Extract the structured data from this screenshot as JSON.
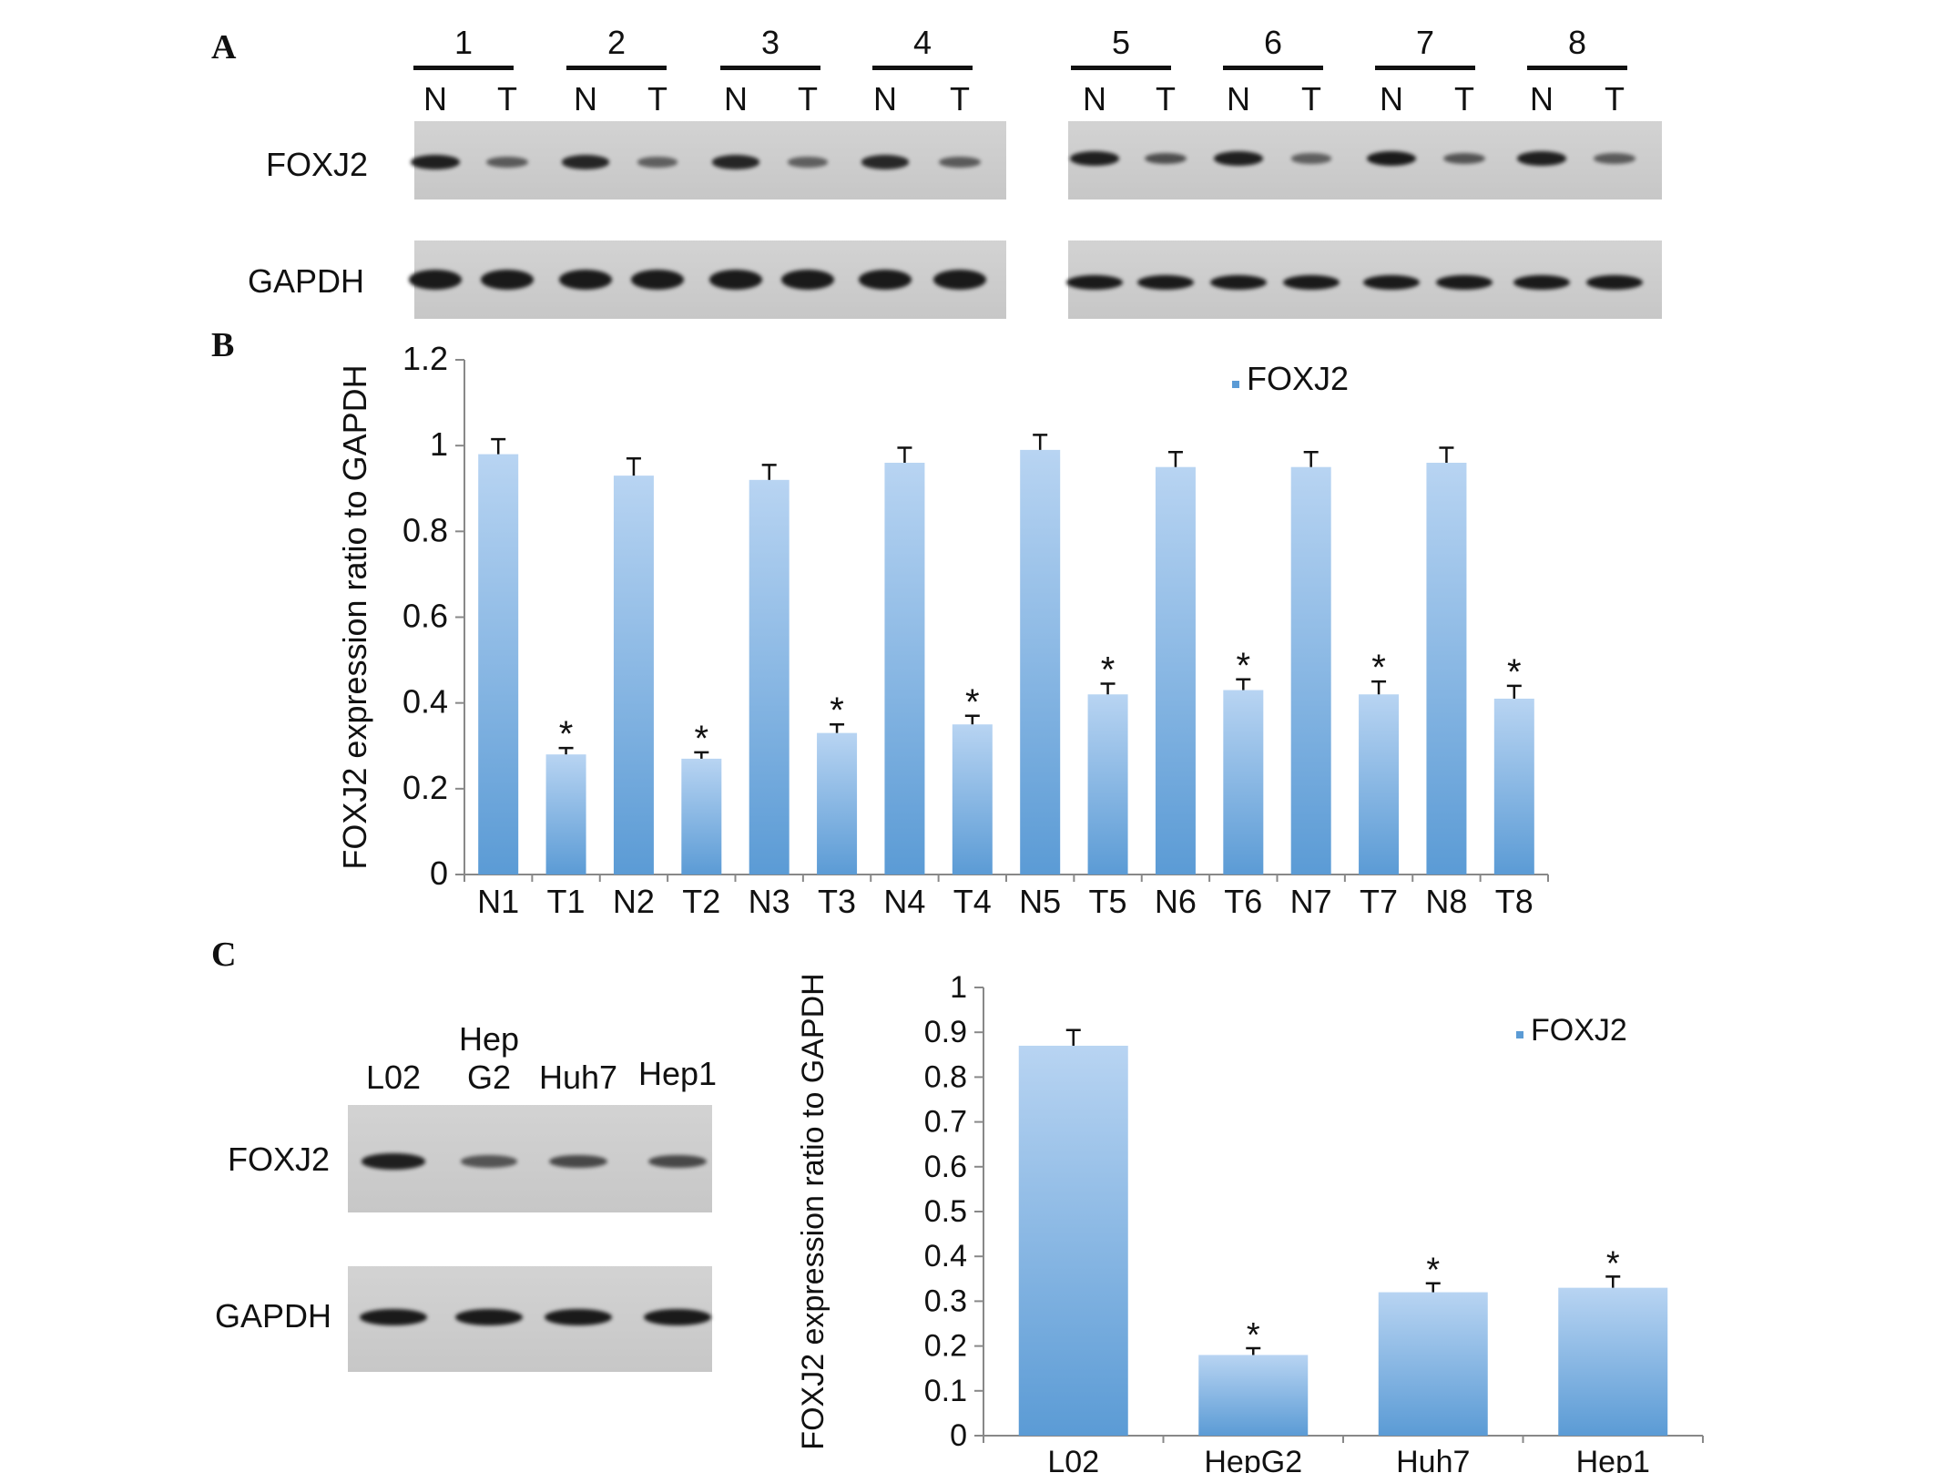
{
  "panels": {
    "a": "A",
    "b": "B",
    "c": "C"
  },
  "panel_a": {
    "pairs": [
      "1",
      "2",
      "3",
      "4",
      "5",
      "6",
      "7",
      "8"
    ],
    "lane_labels": [
      "N",
      "T",
      "N",
      "T",
      "N",
      "T",
      "N",
      "T",
      "N",
      "T",
      "N",
      "T",
      "N",
      "T",
      "N",
      "T"
    ],
    "row_labels": {
      "foxj2": "FOXJ2",
      "gapdh": "GAPDH"
    },
    "foxj2_intensity": [
      0.95,
      0.45,
      0.9,
      0.4,
      0.9,
      0.4,
      0.88,
      0.45,
      0.95,
      0.55,
      0.95,
      0.4,
      1.0,
      0.5,
      0.95,
      0.45
    ],
    "gapdh_intensity": [
      1,
      1,
      1,
      1,
      1,
      1,
      1,
      1,
      1,
      1,
      1,
      1,
      1,
      1,
      1,
      1
    ]
  },
  "panel_c_blot": {
    "lane_labels": [
      "L02",
      "Hep\nG2",
      "Huh7",
      "Hep1"
    ],
    "lane_label_line1": [
      "",
      "Hep",
      "",
      ""
    ],
    "lane_label_line2": [
      "L02",
      "G2",
      "Huh7",
      "Hep1"
    ],
    "row_labels": {
      "foxj2": "FOXJ2",
      "gapdh": "GAPDH"
    },
    "foxj2_intensity": [
      0.95,
      0.5,
      0.6,
      0.6
    ],
    "gapdh_intensity": [
      1,
      1,
      1,
      1
    ]
  },
  "chart_data": [
    {
      "type": "bar",
      "panel": "B",
      "categories": [
        "N1",
        "T1",
        "N2",
        "T2",
        "N3",
        "T3",
        "N4",
        "T4",
        "N5",
        "T5",
        "N6",
        "T6",
        "N7",
        "T7",
        "N8",
        "T8"
      ],
      "series": [
        {
          "name": "FOXJ2",
          "values": [
            0.98,
            0.28,
            0.93,
            0.27,
            0.92,
            0.33,
            0.96,
            0.35,
            0.99,
            0.42,
            0.95,
            0.43,
            0.95,
            0.42,
            0.96,
            0.41
          ],
          "errors": [
            0.035,
            0.015,
            0.04,
            0.015,
            0.035,
            0.02,
            0.035,
            0.02,
            0.035,
            0.025,
            0.035,
            0.025,
            0.035,
            0.03,
            0.035,
            0.03
          ]
        }
      ],
      "significance": [
        "",
        "*",
        "",
        "*",
        "",
        "*",
        "",
        "*",
        "",
        "*",
        "",
        "*",
        "",
        "*",
        "",
        "*"
      ],
      "ylabel": "FOXJ2 expression ratio to GAPDH",
      "xlabel": "",
      "ylim": [
        0,
        1.2
      ],
      "yticks": [
        "0",
        "0.2",
        "0.4",
        "0.6",
        "0.8",
        "1",
        "1.2"
      ],
      "legend": "top-right",
      "bar_color": "#5b9bd5"
    },
    {
      "type": "bar",
      "panel": "C",
      "categories": [
        "L02",
        "HepG2",
        "Huh7",
        "Hep1"
      ],
      "series": [
        {
          "name": "FOXJ2",
          "values": [
            0.87,
            0.18,
            0.32,
            0.33
          ],
          "errors": [
            0.035,
            0.015,
            0.02,
            0.025
          ]
        }
      ],
      "significance": [
        "",
        "*",
        "*",
        "*"
      ],
      "ylabel": "FOXJ2 expression ratio to GAPDH",
      "xlabel": "",
      "ylim": [
        0,
        1
      ],
      "yticks": [
        "0",
        "0.1",
        "0.2",
        "0.3",
        "0.4",
        "0.5",
        "0.6",
        "0.7",
        "0.8",
        "0.9",
        "1"
      ],
      "legend": "top-right",
      "bar_color": "#5b9bd5"
    }
  ]
}
